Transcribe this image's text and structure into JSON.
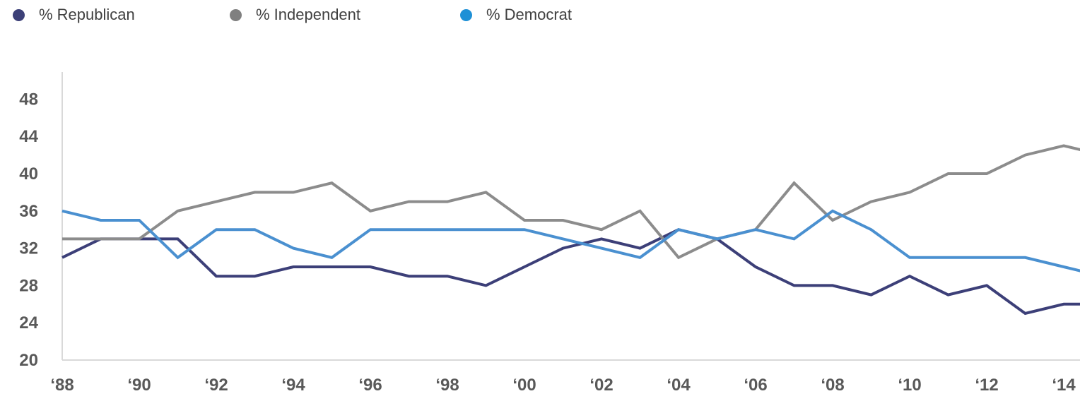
{
  "chart_data": {
    "type": "line",
    "title": "",
    "xlabel": "",
    "ylabel": "",
    "ylim": [
      20,
      50
    ],
    "yticks": [
      "20",
      "24",
      "28",
      "32",
      "36",
      "40",
      "44",
      "48"
    ],
    "x": [
      1988,
      1989,
      1990,
      1991,
      1992,
      1993,
      1994,
      1995,
      1996,
      1997,
      1998,
      1999,
      2000,
      2001,
      2002,
      2003,
      2004,
      2005,
      2006,
      2007,
      2008,
      2009,
      2010,
      2011,
      2012,
      2013,
      2014,
      2015
    ],
    "xtick_labels": [
      {
        "year": 1988,
        "label": "‘88"
      },
      {
        "year": 1990,
        "label": "‘90"
      },
      {
        "year": 1992,
        "label": "‘92"
      },
      {
        "year": 1994,
        "label": "‘94"
      },
      {
        "year": 1996,
        "label": "‘96"
      },
      {
        "year": 1998,
        "label": "‘98"
      },
      {
        "year": 2000,
        "label": "‘00"
      },
      {
        "year": 2002,
        "label": "‘02"
      },
      {
        "year": 2004,
        "label": "‘04"
      },
      {
        "year": 2006,
        "label": "‘06"
      },
      {
        "year": 2008,
        "label": "‘08"
      },
      {
        "year": 2010,
        "label": "‘10"
      },
      {
        "year": 2012,
        "label": "‘12"
      },
      {
        "year": 2014,
        "label": "‘14"
      }
    ],
    "series": [
      {
        "name": "% Republican",
        "color": "#3c3f78",
        "values": [
          31,
          33,
          33,
          33,
          29,
          29,
          30,
          30,
          30,
          29,
          29,
          28,
          30,
          32,
          33,
          32,
          34,
          33,
          30,
          28,
          28,
          27,
          29,
          27,
          28,
          25,
          26,
          26
        ]
      },
      {
        "name": "% Independent",
        "color": "#8c8c8c",
        "values": [
          33,
          33,
          33,
          36,
          37,
          38,
          38,
          39,
          36,
          37,
          37,
          38,
          35,
          35,
          34,
          36,
          31,
          33,
          34,
          39,
          35,
          37,
          38,
          40,
          40,
          42,
          43,
          42
        ]
      },
      {
        "name": "% Democrat",
        "color": "#4a90d0",
        "values": [
          36,
          35,
          35,
          31,
          34,
          34,
          32,
          31,
          34,
          34,
          34,
          34,
          34,
          33,
          32,
          31,
          34,
          33,
          34,
          33,
          36,
          34,
          31,
          31,
          31,
          31,
          30,
          29
        ]
      }
    ],
    "legend": {
      "placement": "top-left",
      "items": [
        {
          "label": "% Republican",
          "dot_color": "#3c4078"
        },
        {
          "label": "% Independent",
          "dot_color": "#808080"
        },
        {
          "label": "% Democrat",
          "dot_color": "#1e90d6"
        }
      ]
    },
    "grid": false
  }
}
